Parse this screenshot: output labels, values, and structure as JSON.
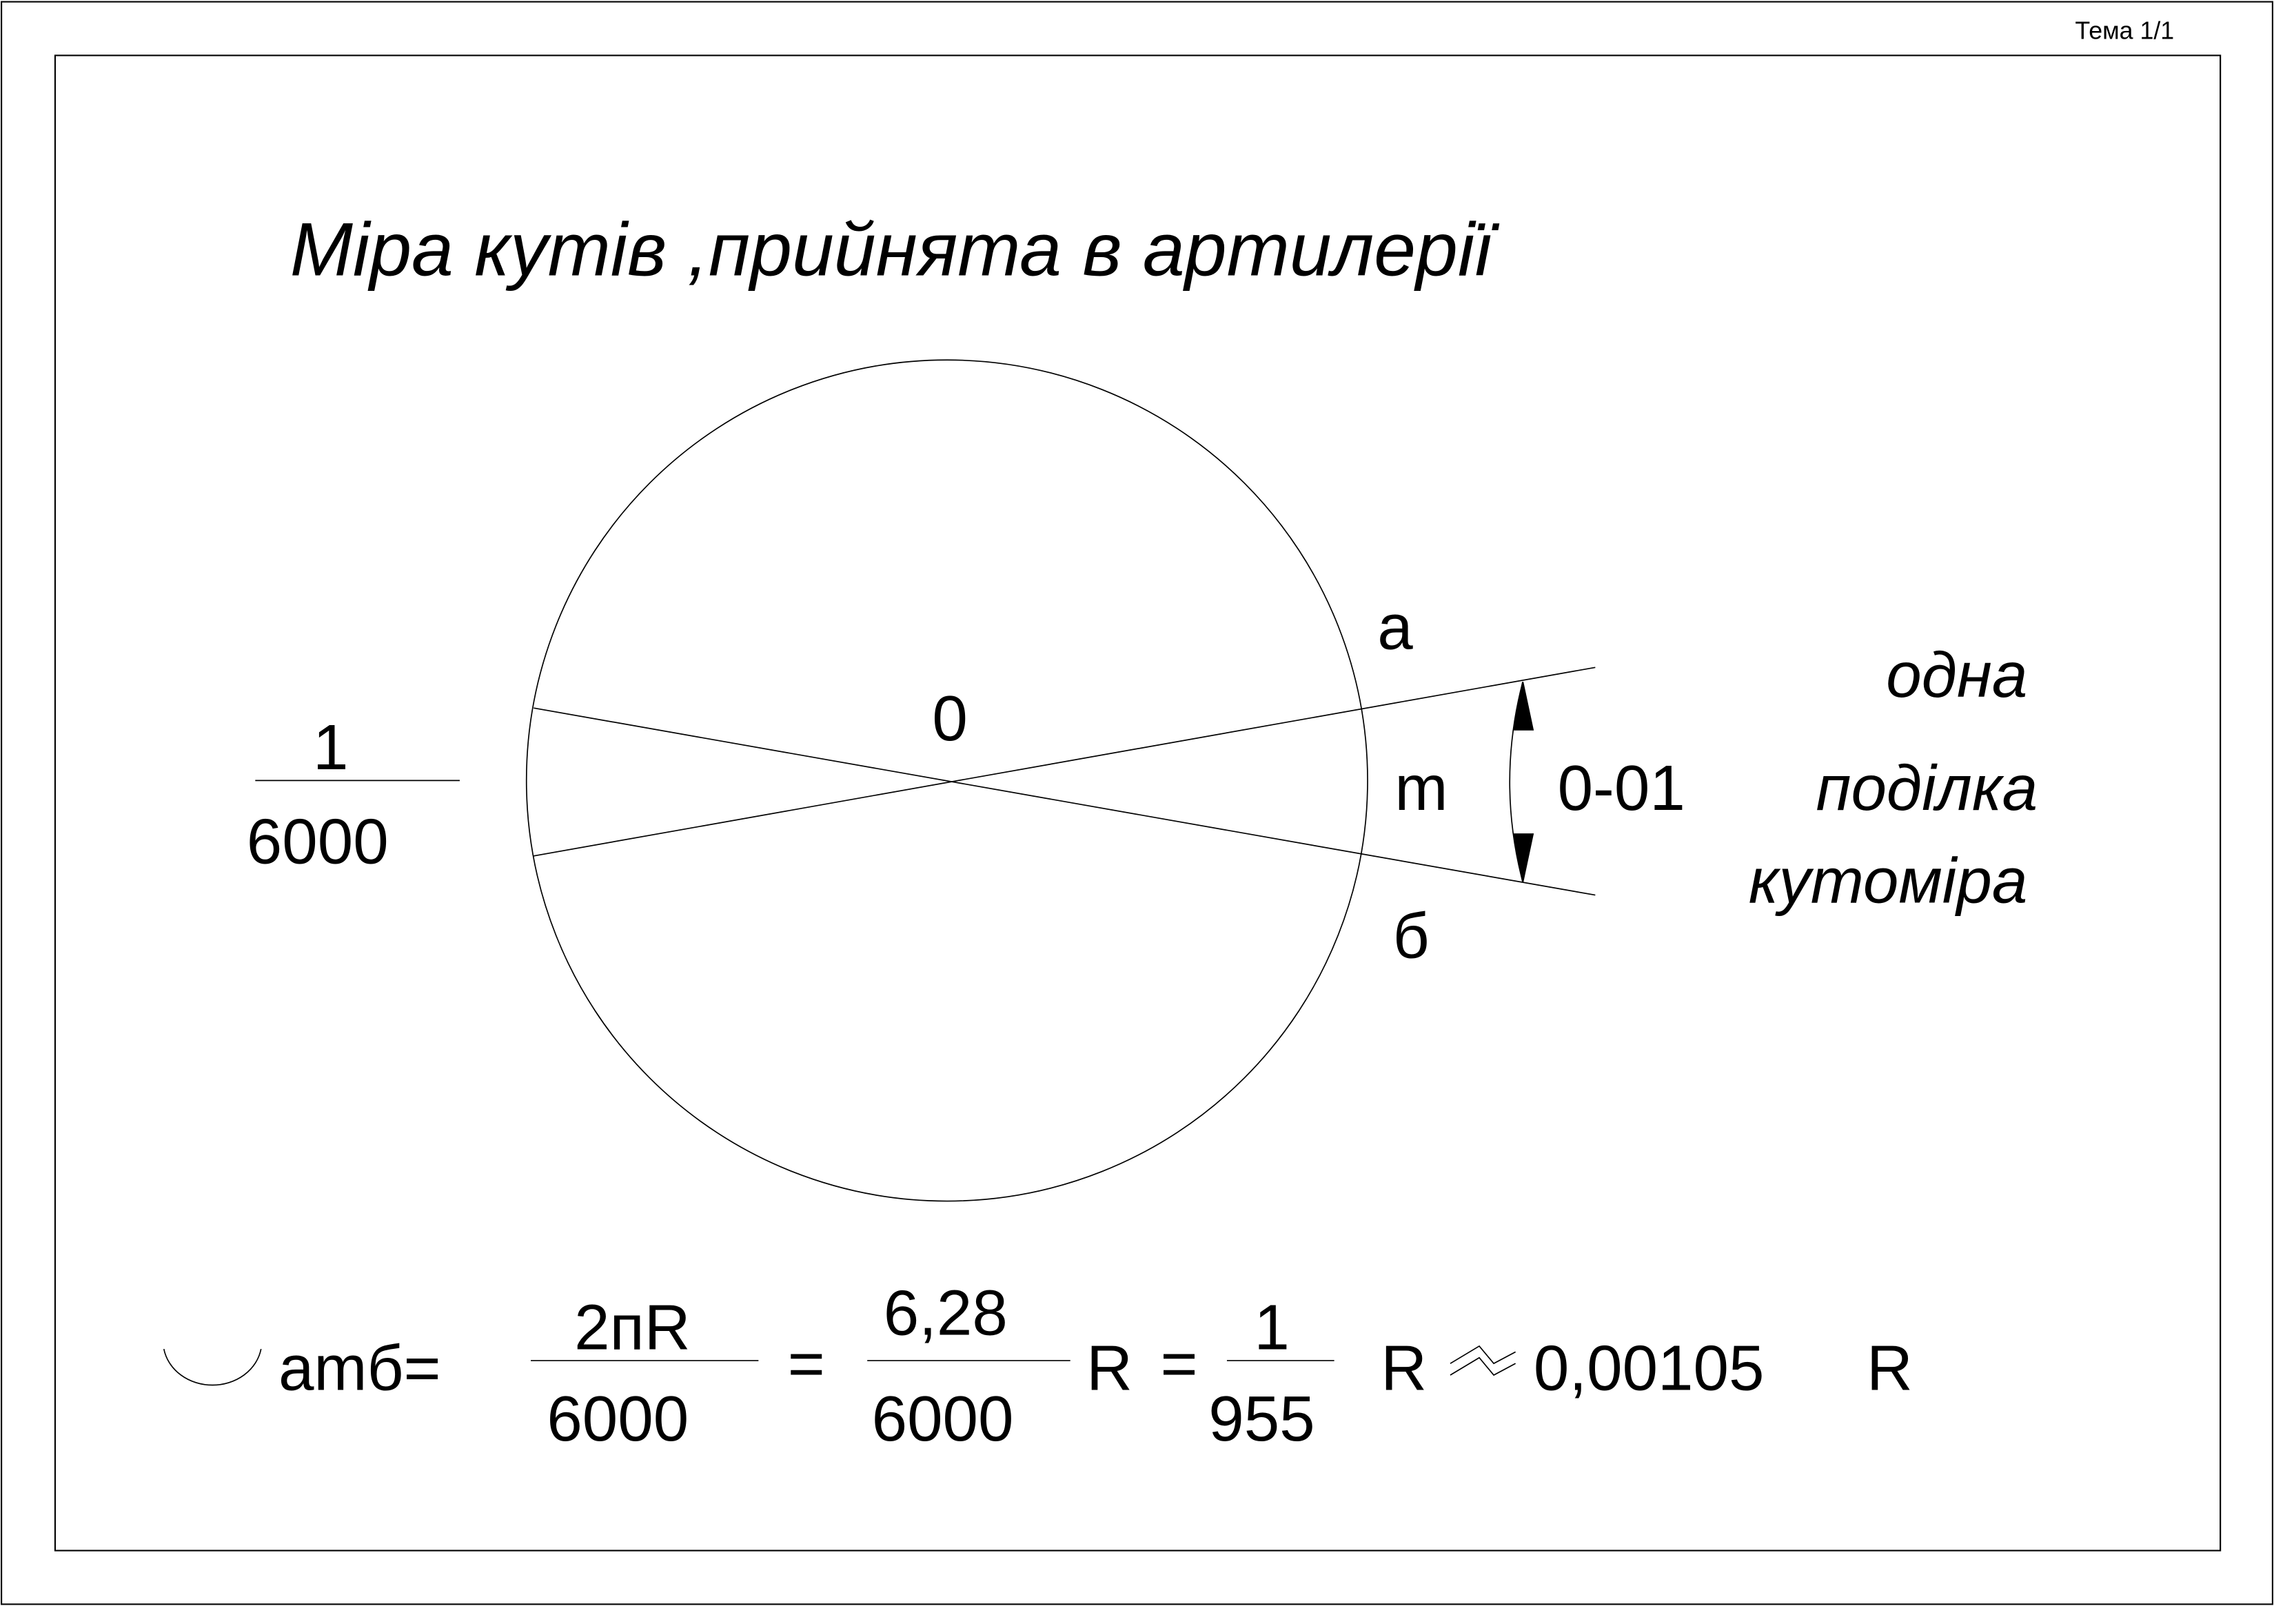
{
  "header": {
    "label": "Тема 1/1"
  },
  "title": "Міра кутів ,прийнята в артилерії",
  "diagram": {
    "center": "0",
    "point_a": "а",
    "point_m": "m",
    "point_b": "б",
    "angle": "0-01",
    "note": [
      "одна",
      "поділка",
      "кутоміра"
    ],
    "fraction": {
      "numerator": "1",
      "denominator": "6000"
    }
  },
  "formula": {
    "arc_name": "amб=",
    "term1": {
      "numerator": "2пR",
      "denominator": "6000"
    },
    "eq1": "=",
    "term2": {
      "numerator": "6,28",
      "denominator": "6000"
    },
    "r1": "R",
    "eq2": "=",
    "term3": {
      "numerator": "1",
      "denominator": "955"
    },
    "r2": "R",
    "approx": "0,00105",
    "r3": "R"
  }
}
